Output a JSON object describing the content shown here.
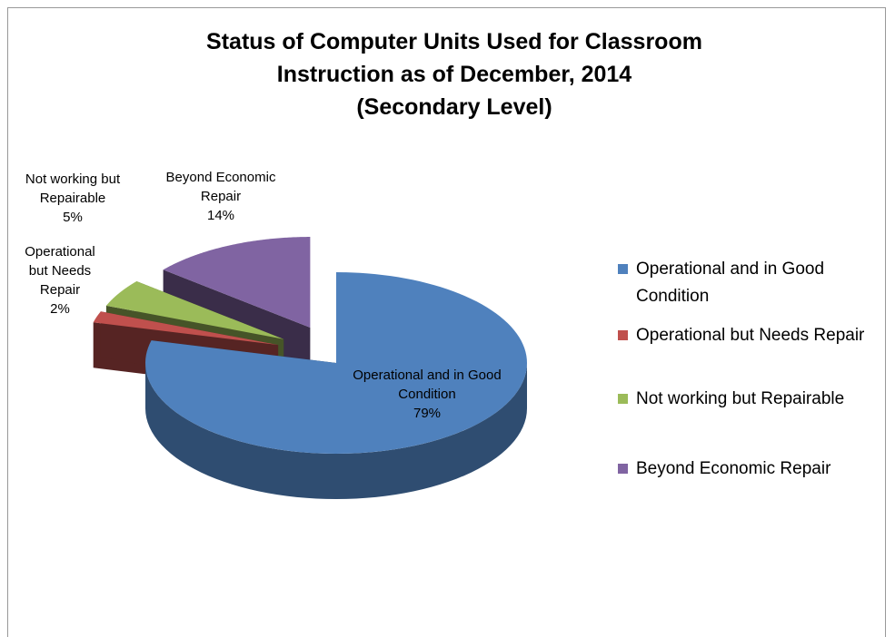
{
  "chart_data": {
    "type": "pie",
    "title": "Status of Computer Units Used for Classroom Instruction as of December, 2014",
    "subtitle": "(Secondary Level)",
    "categories": [
      "Operational and in Good Condition",
      "Operational but Needs Repair",
      "Not working but Repairable",
      "Beyond Economic Repair"
    ],
    "values": [
      79,
      2,
      5,
      14
    ],
    "value_labels": [
      "79%",
      "2%",
      "5%",
      "14%"
    ],
    "colors": [
      "#4f81bd",
      "#c0504d",
      "#9bbb59",
      "#8064a2"
    ],
    "legend": "right"
  }
}
